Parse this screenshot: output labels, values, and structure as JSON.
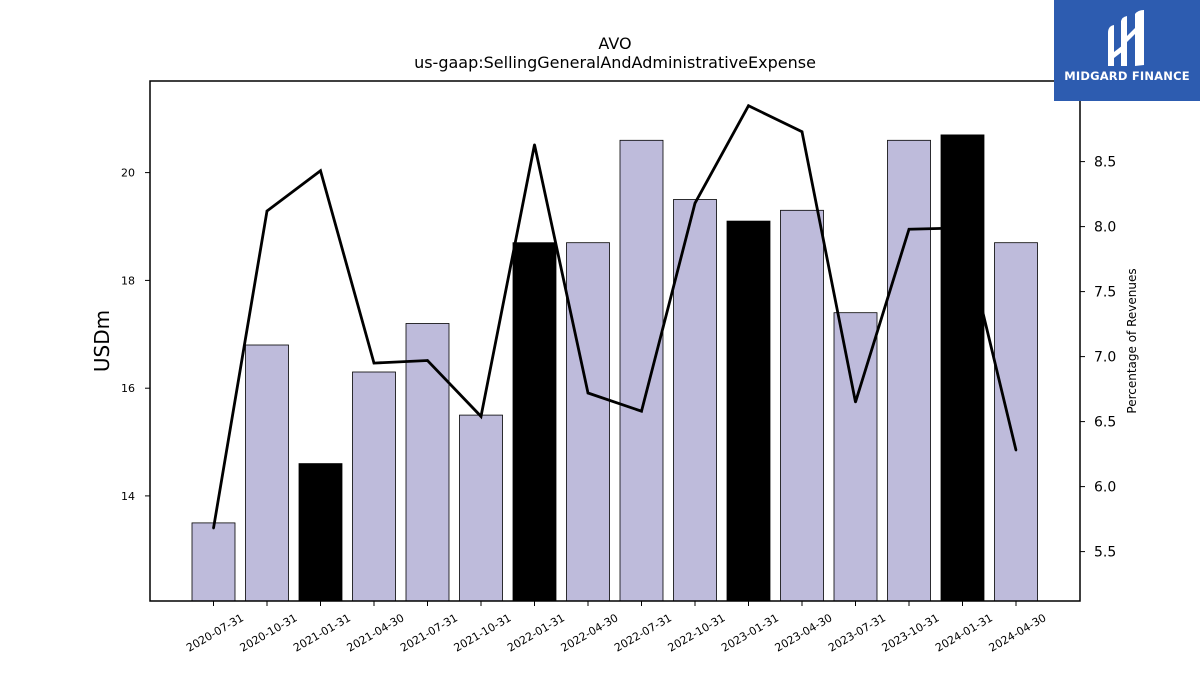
{
  "chart_data": {
    "type": "bar",
    "title": "AVO",
    "subtitle": "us-gaap:SellingGeneralAndAdministrativeExpense",
    "ylabel": "USDm",
    "y2label": "Percentage of Revenues",
    "categories": [
      "2020-07-31",
      "2020-10-31",
      "2021-01-31",
      "2021-04-30",
      "2021-07-31",
      "2021-10-31",
      "2022-01-31",
      "2022-04-30",
      "2022-07-31",
      "2022-10-31",
      "2023-01-31",
      "2023-04-30",
      "2023-07-31",
      "2023-10-31",
      "2024-01-31",
      "2024-04-30"
    ],
    "series": [
      {
        "type": "bar",
        "axis": "left",
        "values": [
          13.5,
          16.8,
          14.6,
          16.3,
          17.2,
          15.5,
          18.7,
          18.7,
          20.6,
          19.5,
          19.1,
          19.3,
          17.4,
          20.6,
          20.7,
          18.7
        ],
        "highlight": [
          false,
          false,
          true,
          false,
          false,
          false,
          true,
          false,
          false,
          false,
          true,
          false,
          false,
          false,
          true,
          false
        ]
      },
      {
        "type": "line",
        "axis": "right",
        "values": [
          5.68,
          8.12,
          8.43,
          6.95,
          6.97,
          6.54,
          8.63,
          6.72,
          6.58,
          8.18,
          8.93,
          8.73,
          6.65,
          7.98,
          7.99,
          6.28
        ]
      }
    ],
    "ylim": [
      12.05,
      21.7
    ],
    "y2lim": [
      5.12,
      9.12
    ],
    "yticks": [
      14,
      16,
      18,
      20
    ],
    "y2ticks": [
      "5.5",
      "6.0",
      "6.5",
      "7.0",
      "7.5",
      "8.0",
      "8.5"
    ],
    "bar_color": "#bebbdb",
    "highlight_color": "#000000",
    "line_color": "#000000",
    "grid": false
  },
  "logo": {
    "text": "MIDGARD FINANCE",
    "background": "#2d5cb0"
  }
}
